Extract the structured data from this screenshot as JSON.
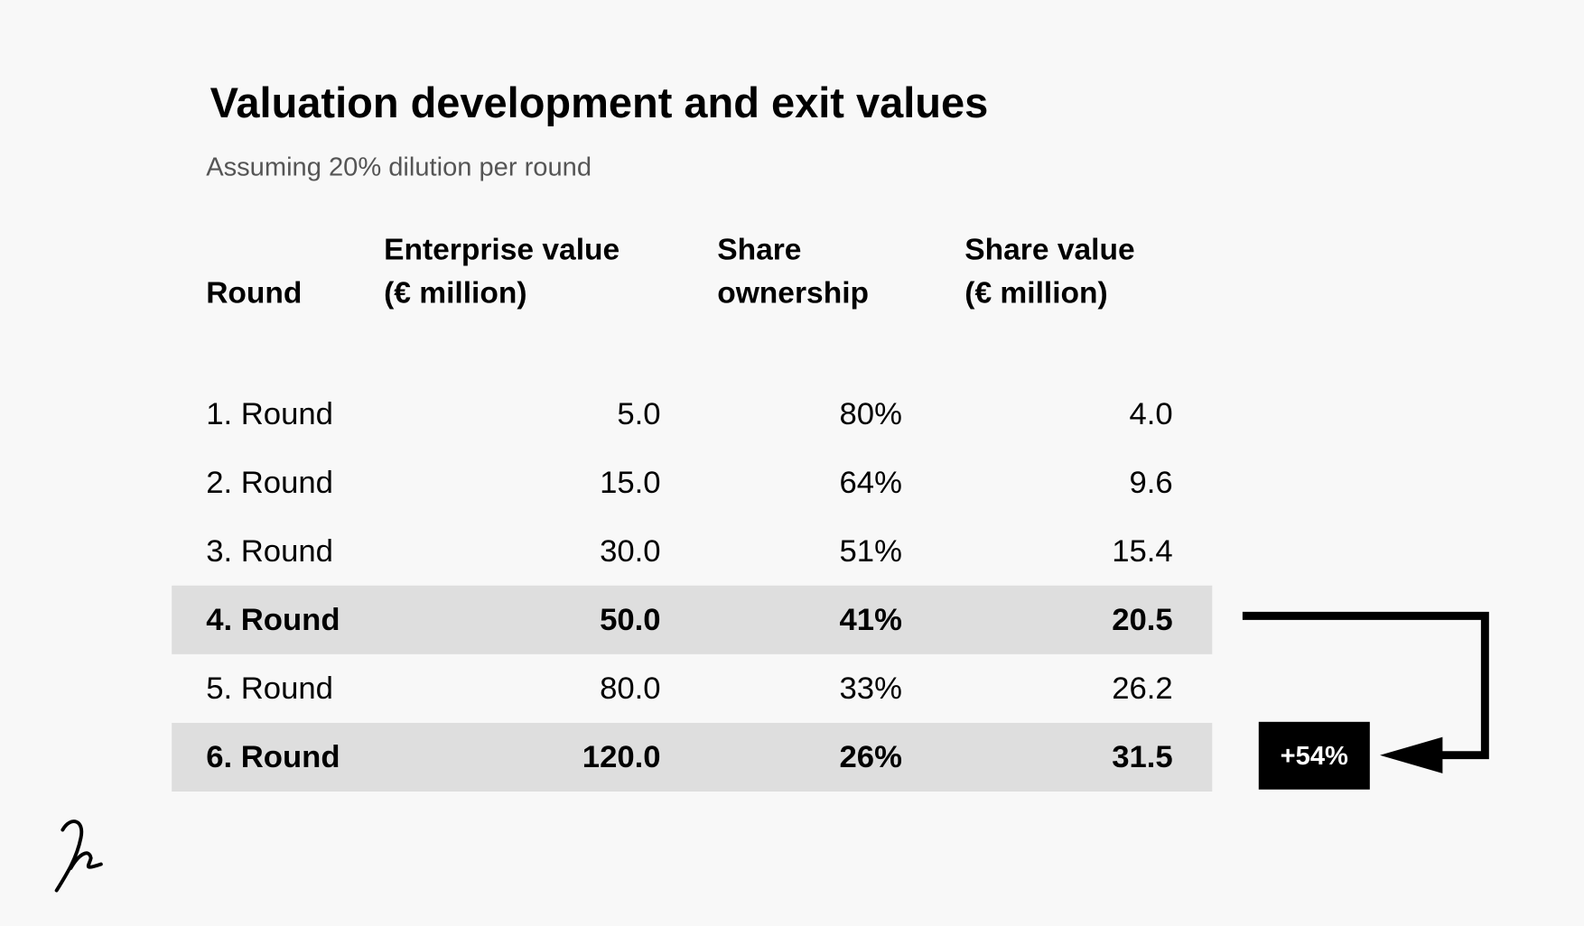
{
  "header": {
    "title": "Valuation development and exit values",
    "subtitle": "Assuming 20% dilution per round"
  },
  "table": {
    "columns": [
      [
        "Round"
      ],
      [
        "Enterprise value",
        "(€ million)"
      ],
      [
        "Share",
        "ownership"
      ],
      [
        "Share value",
        "(€ million)"
      ]
    ],
    "rows": [
      {
        "cells": [
          "1. Round",
          "5.0",
          "80%",
          "4.0"
        ],
        "highlight": false
      },
      {
        "cells": [
          "2. Round",
          "15.0",
          "64%",
          "9.6"
        ],
        "highlight": false
      },
      {
        "cells": [
          "3. Round",
          "30.0",
          "51%",
          "15.4"
        ],
        "highlight": false
      },
      {
        "cells": [
          "4. Round",
          "50.0",
          "41%",
          "20.5"
        ],
        "highlight": true
      },
      {
        "cells": [
          "5. Round",
          "80.0",
          "33%",
          "26.2"
        ],
        "highlight": false
      },
      {
        "cells": [
          "6. Round",
          "120.0",
          "26%",
          "31.5"
        ],
        "highlight": true
      }
    ]
  },
  "callout": {
    "label": "+54%"
  }
}
